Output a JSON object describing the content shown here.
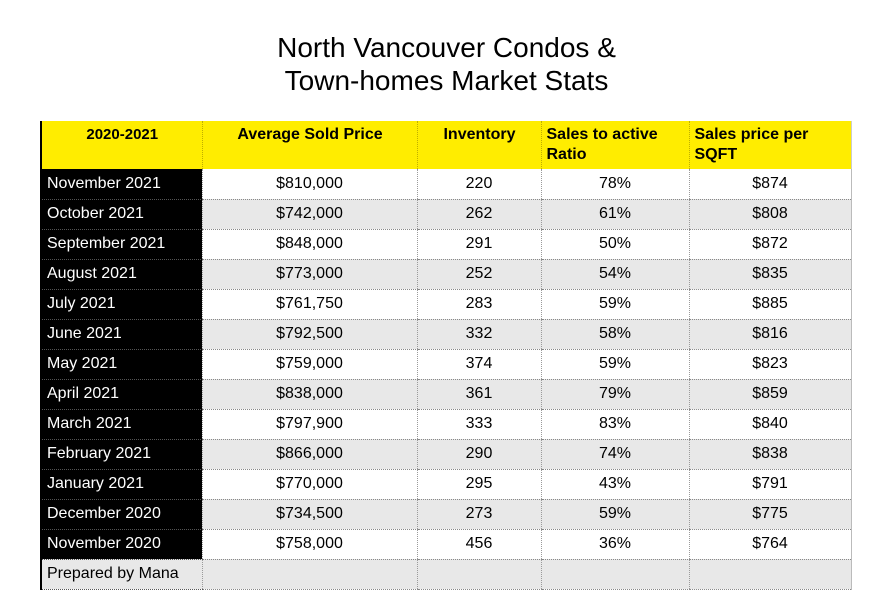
{
  "title": {
    "line1": "North Vancouver Condos &",
    "line2": "Town-homes Market Stats"
  },
  "table": {
    "headers": [
      "2020-2021",
      "Average Sold Price",
      "Inventory",
      "Sales to active Ratio",
      "Sales price per SQFT"
    ],
    "rows": [
      [
        "November 2021",
        "$810,000",
        "220",
        "78%",
        "$874"
      ],
      [
        "October 2021",
        "$742,000",
        "262",
        "61%",
        "$808"
      ],
      [
        "September 2021",
        "$848,000",
        "291",
        "50%",
        "$872"
      ],
      [
        "August 2021",
        "$773,000",
        "252",
        "54%",
        "$835"
      ],
      [
        "July 2021",
        "$761,750",
        "283",
        "59%",
        "$885"
      ],
      [
        "June 2021",
        "$792,500",
        "332",
        "58%",
        "$816"
      ],
      [
        "May 2021",
        "$759,000",
        "374",
        "59%",
        "$823"
      ],
      [
        "April 2021",
        "$838,000",
        "361",
        "79%",
        "$859"
      ],
      [
        "March 2021",
        "$797,900",
        "333",
        "83%",
        "$840"
      ],
      [
        "February 2021",
        "$866,000",
        "290",
        "74%",
        "$838"
      ],
      [
        "January 2021",
        "$770,000",
        "295",
        "43%",
        "$791"
      ],
      [
        "December 2020",
        "$734,500",
        "273",
        "59%",
        "$775"
      ],
      [
        "November 2020",
        "$758,000",
        "456",
        "36%",
        "$764"
      ]
    ],
    "footer": "Prepared by Mana"
  },
  "colors": {
    "header_background": "#ffed00",
    "month_background": "#000000",
    "month_text": "#ffffff",
    "shaded_row": "#e8e8e8"
  }
}
